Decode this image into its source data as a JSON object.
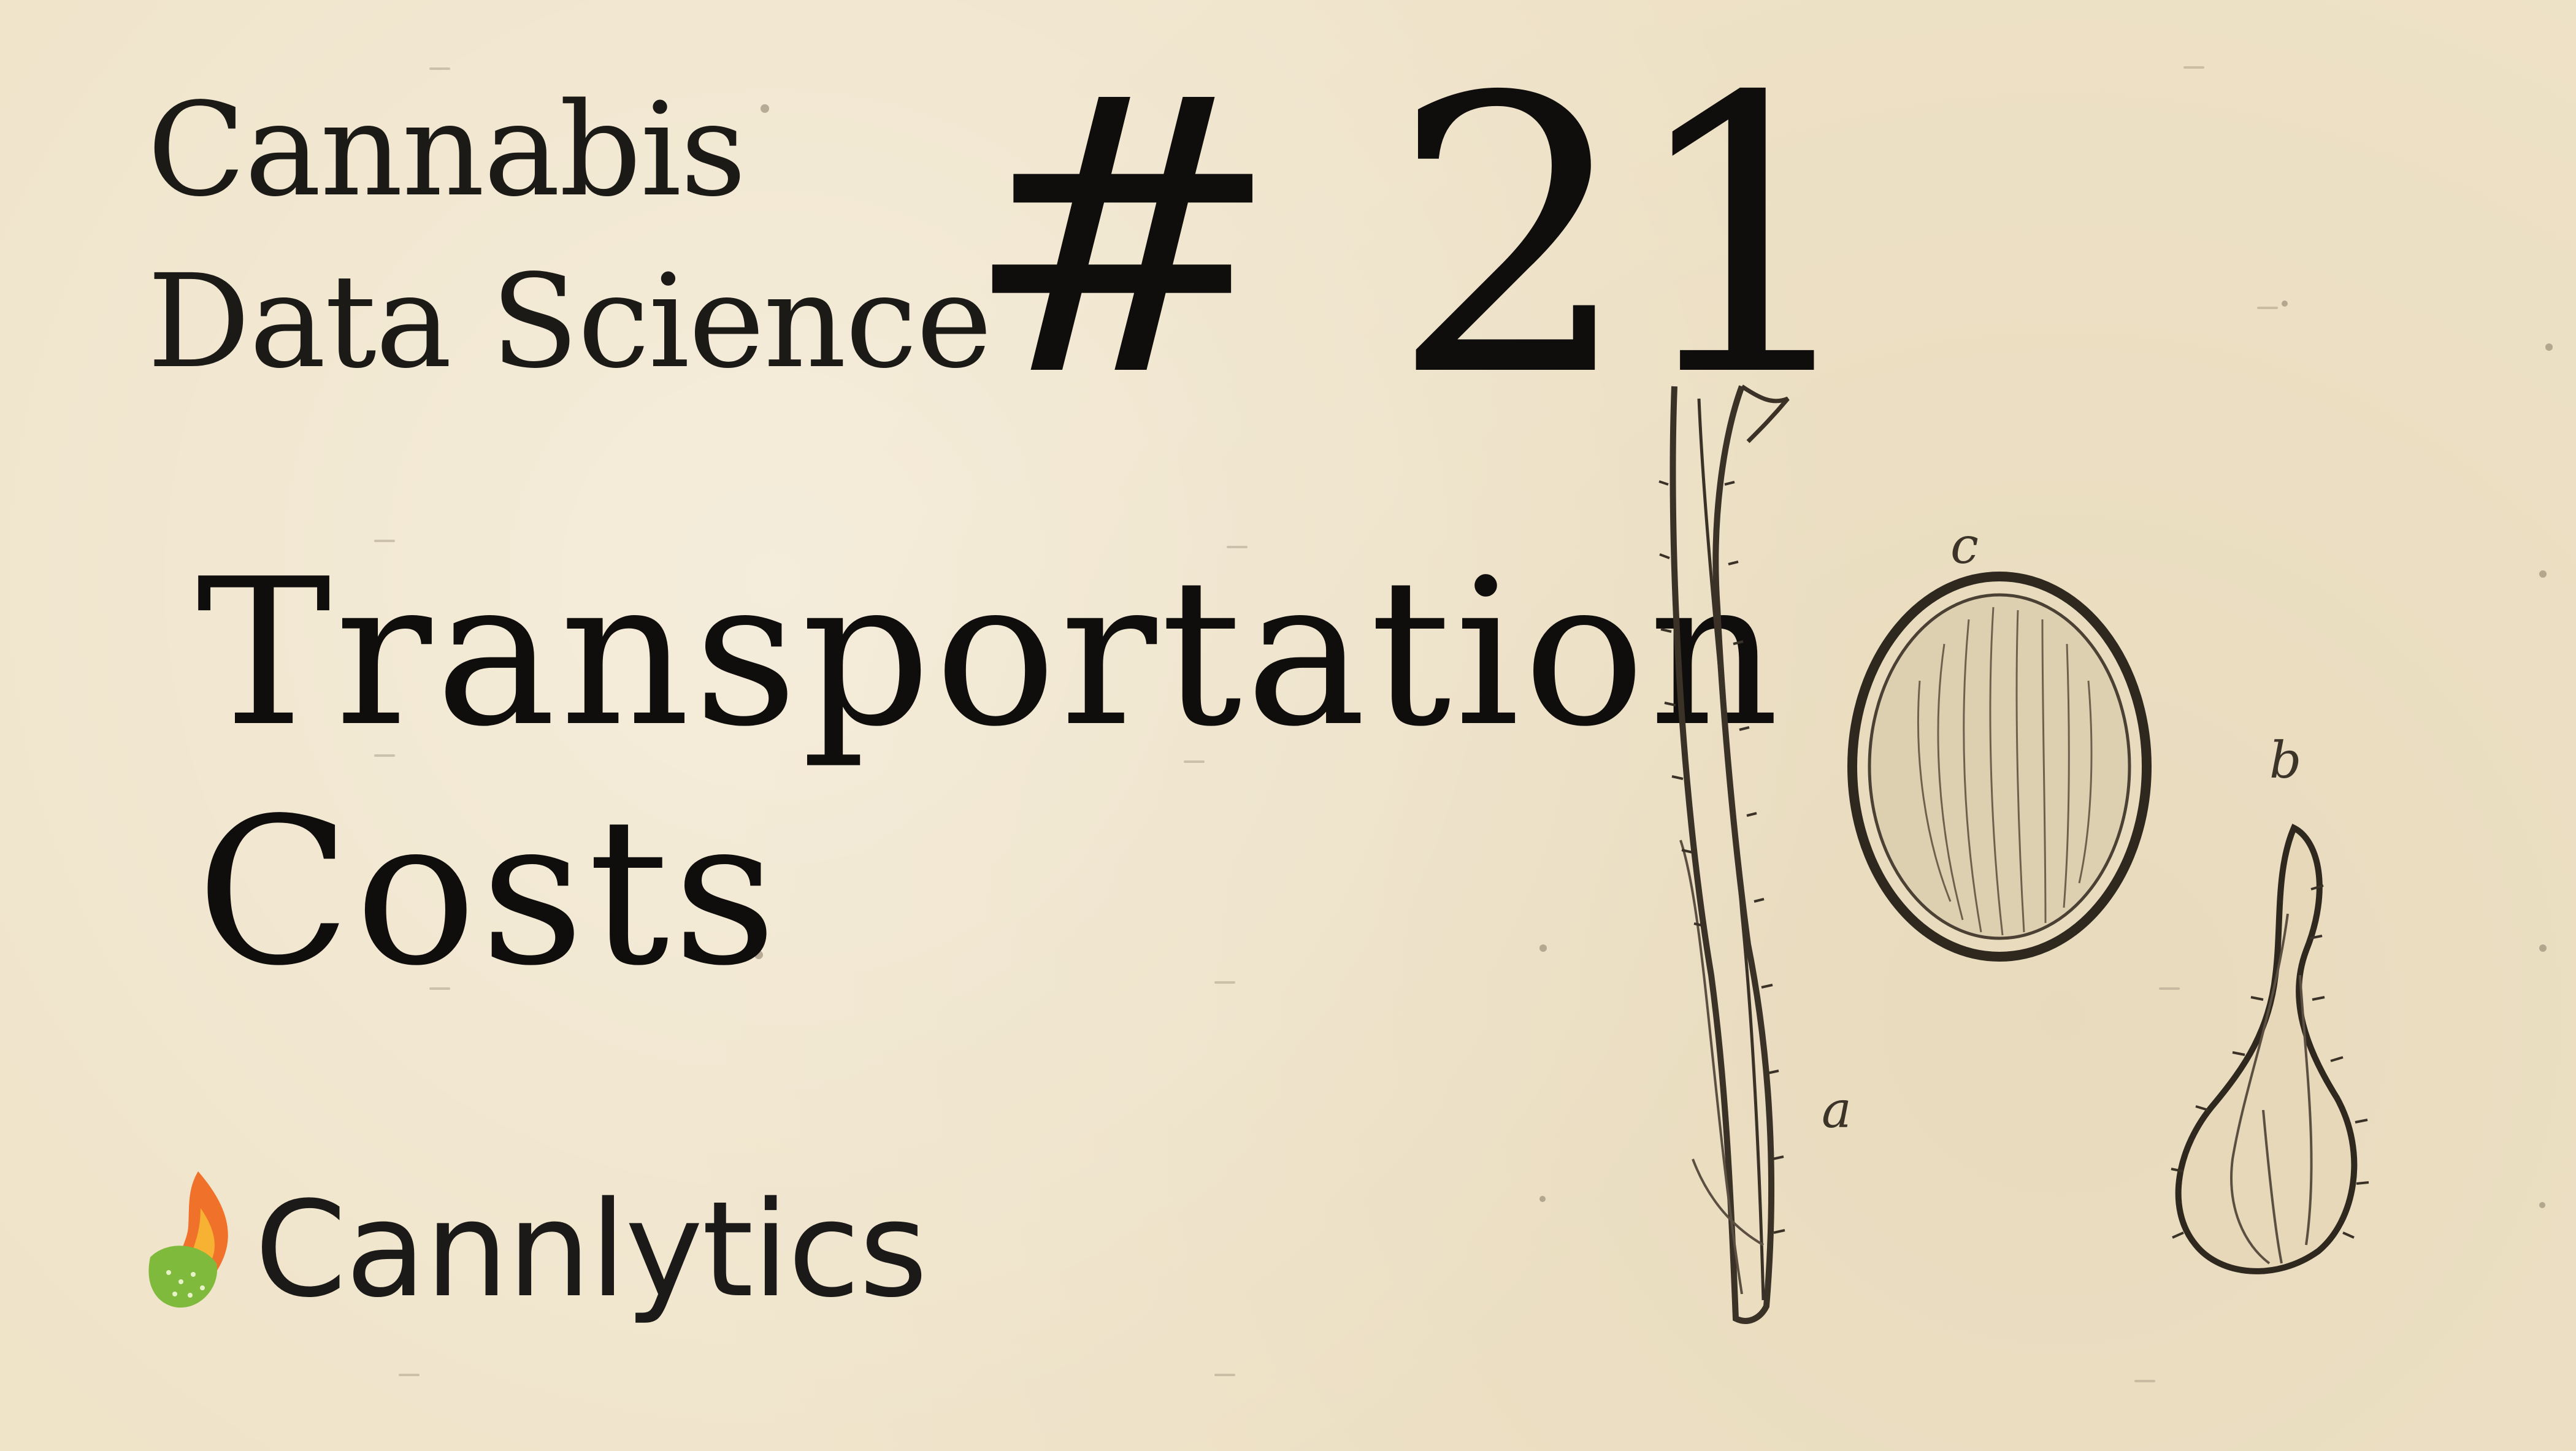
{
  "series": {
    "line1": "Cannabis",
    "line2": "Data Science"
  },
  "episode": "# 21",
  "topic": {
    "line1": "Transportation",
    "line2": "Costs"
  },
  "brand": {
    "name": "Cannlytics",
    "logo_icon": "flame-leaf-icon",
    "colors": {
      "flame_outer": "#f0722a",
      "flame_inner": "#f8b233",
      "leaf": "#7fba3d"
    }
  },
  "illustration": {
    "icon": "cannabis-seed-illustration",
    "labels": [
      "a",
      "b",
      "c"
    ]
  }
}
